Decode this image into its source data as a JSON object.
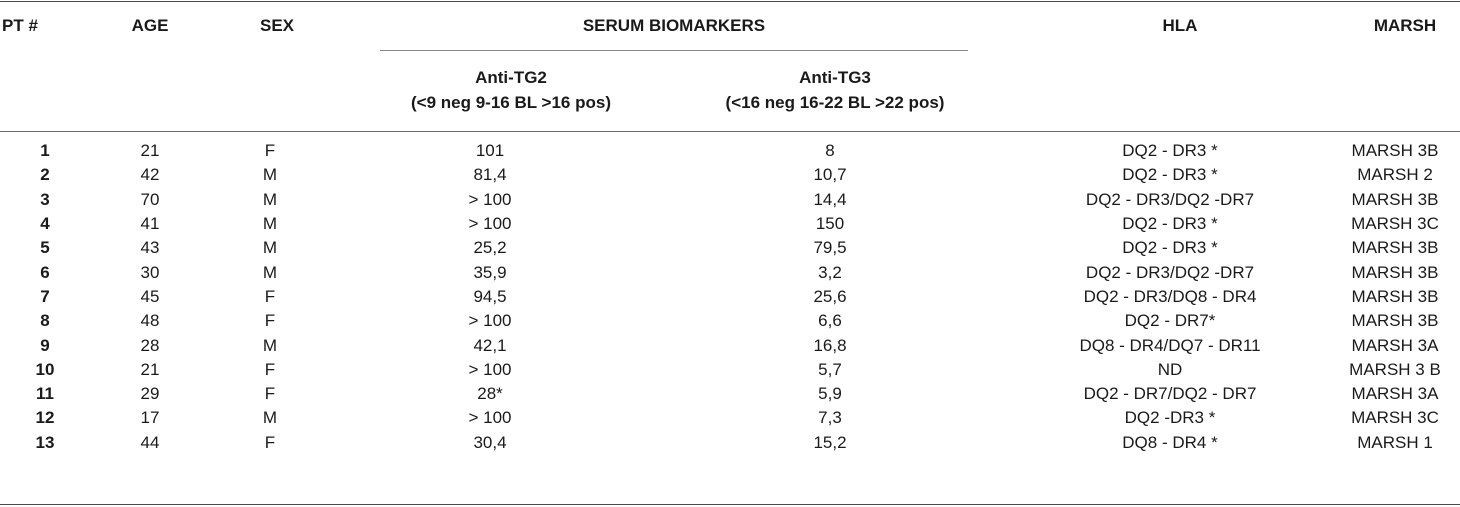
{
  "headers": {
    "pt": "PT #",
    "age": "AGE",
    "sex": "SEX",
    "serum": "SERUM BIOMARKERS",
    "tg2": "Anti-TG2",
    "tg2_range": "(<9 neg 9-16 BL >16 pos)",
    "tg3": "Anti-TG3",
    "tg3_range": "(<16 neg 16-22 BL >22 pos)",
    "hla": "HLA",
    "marsh": "MARSH"
  },
  "rows": [
    {
      "pt": "1",
      "age": "21",
      "sex": "F",
      "tg2": "101",
      "tg3": "8",
      "hla": "DQ2 - DR3 *",
      "marsh": "MARSH 3B"
    },
    {
      "pt": "2",
      "age": "42",
      "sex": "M",
      "tg2": "81,4",
      "tg3": "10,7",
      "hla": "DQ2 - DR3 *",
      "marsh": "MARSH 2"
    },
    {
      "pt": "3",
      "age": "70",
      "sex": "M",
      "tg2": "> 100",
      "tg3": "14,4",
      "hla": "DQ2 - DR3/DQ2 -DR7",
      "marsh": "MARSH 3B"
    },
    {
      "pt": "4",
      "age": "41",
      "sex": "M",
      "tg2": "> 100",
      "tg3": "150",
      "hla": "DQ2 - DR3 *",
      "marsh": "MARSH 3C"
    },
    {
      "pt": "5",
      "age": "43",
      "sex": "M",
      "tg2": "25,2",
      "tg3": "79,5",
      "hla": "DQ2 - DR3 *",
      "marsh": "MARSH 3B"
    },
    {
      "pt": "6",
      "age": "30",
      "sex": "M",
      "tg2": "35,9",
      "tg3": "3,2",
      "hla": "DQ2 - DR3/DQ2 -DR7",
      "marsh": "MARSH 3B"
    },
    {
      "pt": "7",
      "age": "45",
      "sex": "F",
      "tg2": "94,5",
      "tg3": "25,6",
      "hla": "DQ2 - DR3/DQ8 - DR4",
      "marsh": "MARSH 3B"
    },
    {
      "pt": "8",
      "age": "48",
      "sex": "F",
      "tg2": "> 100",
      "tg3": "6,6",
      "hla": "DQ2 - DR7*",
      "marsh": "MARSH 3B"
    },
    {
      "pt": "9",
      "age": "28",
      "sex": "M",
      "tg2": "42,1",
      "tg3": "16,8",
      "hla": "DQ8 - DR4/DQ7 - DR11",
      "marsh": "MARSH 3A"
    },
    {
      "pt": "10",
      "age": "21",
      "sex": "F",
      "tg2": "> 100",
      "tg3": "5,7",
      "hla": "ND",
      "marsh": "MARSH 3 B"
    },
    {
      "pt": "11",
      "age": "29",
      "sex": "F",
      "tg2": "28*",
      "tg3": "5,9",
      "hla": "DQ2 - DR7/DQ2 - DR7",
      "marsh": "MARSH 3A"
    },
    {
      "pt": "12",
      "age": "17",
      "sex": "M",
      "tg2": "> 100",
      "tg3": "7,3",
      "hla": "DQ2 -DR3 *",
      "marsh": "MARSH 3C"
    },
    {
      "pt": "13",
      "age": "44",
      "sex": "F",
      "tg2": "30,4",
      "tg3": "15,2",
      "hla": "DQ8 - DR4 *",
      "marsh": "MARSH 1"
    }
  ]
}
